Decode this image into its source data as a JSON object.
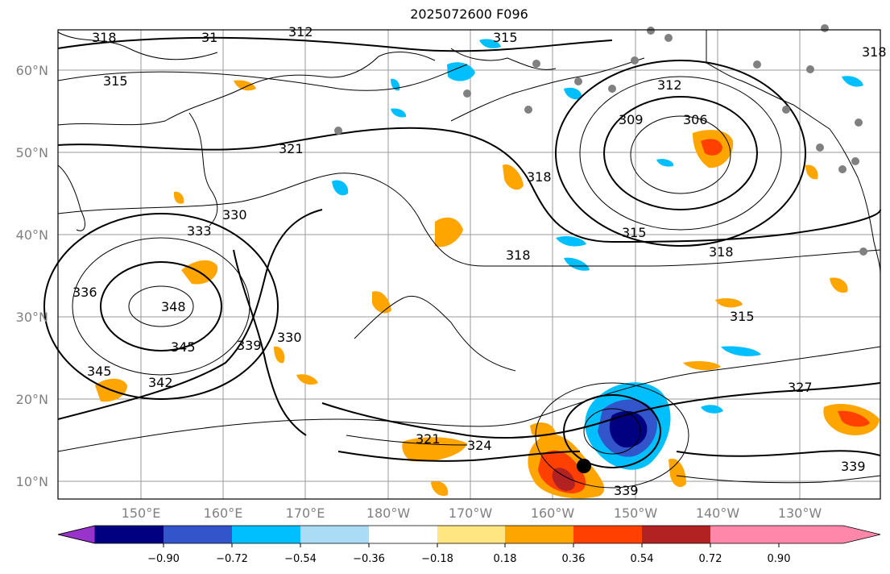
{
  "title": "2025072600 F096",
  "map": {
    "lat_labels": [
      "60°N",
      "50°N",
      "40°N",
      "30°N",
      "20°N",
      "10°N"
    ],
    "lon_labels": [
      "150°E",
      "160°E",
      "170°E",
      "180°W",
      "170°W",
      "160°W",
      "150°W",
      "140°W",
      "130°W"
    ],
    "contour_labels": [
      "318",
      "31",
      "312",
      "315",
      "318",
      "315",
      "321",
      "312",
      "309",
      "306",
      "318",
      "333",
      "330",
      "336",
      "348",
      "345",
      "339",
      "330",
      "342",
      "345",
      "318",
      "315",
      "318",
      "315",
      "327",
      "321",
      "324",
      "339",
      "339"
    ]
  },
  "colorbar": {
    "tick_labels": [
      "−0.90",
      "−0.72",
      "−0.54",
      "−0.36",
      "−0.18",
      "0.18",
      "0.36",
      "0.54",
      "0.72",
      "0.90"
    ],
    "colors": [
      "#9933cc",
      "#000080",
      "#3355cc",
      "#00bfff",
      "#aadcf5",
      "#ffffff",
      "#ffe680",
      "#ffa500",
      "#ff4000",
      "#b22222",
      "#ff88aa"
    ]
  }
}
